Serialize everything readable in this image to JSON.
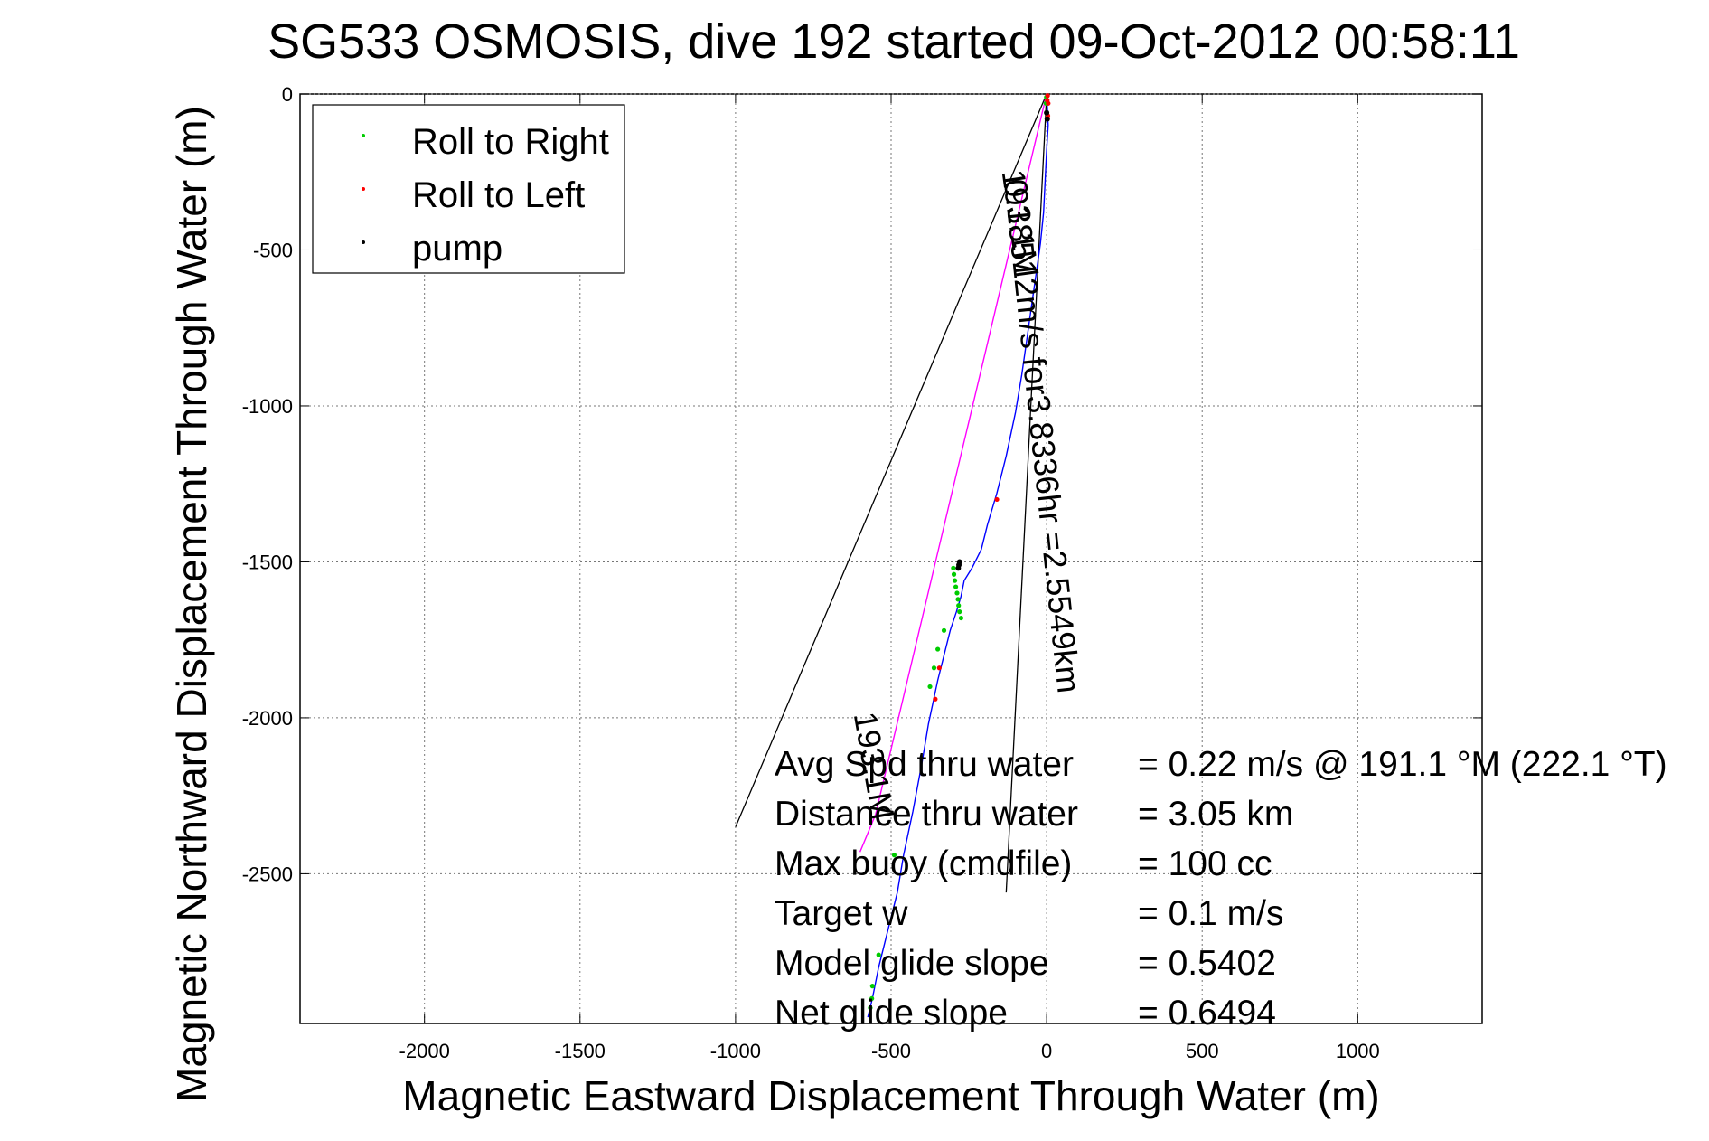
{
  "chart_data": {
    "type": "line",
    "title": "SG533 OSMOSIS, dive 192 started 09-Oct-2012 00:58:11",
    "xlabel": "Magnetic Eastward Displacement Through Water (m)",
    "ylabel": "Magnetic Northward Displacement Through Water (m)",
    "xlim": [
      -2400,
      1400
    ],
    "ylim": [
      -2980,
      0
    ],
    "xticks": [
      -2000,
      -1500,
      -1000,
      -500,
      0,
      500,
      1000
    ],
    "yticks": [
      0,
      -500,
      -1000,
      -1500,
      -2000,
      -2500
    ],
    "xtick_labels": [
      "-2000",
      "-1500",
      "-1000",
      "-500",
      "0",
      "500",
      "1000"
    ],
    "ytick_labels": [
      "0",
      "-500",
      "-1000",
      "-1500",
      "-2000",
      "-2500"
    ],
    "grid": true,
    "legend_position": "top-left",
    "legend": [
      {
        "label": "Roll to Right",
        "color": "#00cc00"
      },
      {
        "label": "Roll to Left",
        "color": "#ff0000"
      },
      {
        "label": "pump",
        "color": "#000000"
      }
    ],
    "series": [
      {
        "color": "#0000ff",
        "x": [
          0,
          2,
          5,
          0,
          -5,
          -10,
          -20,
          -40,
          -60,
          -80,
          -100,
          -130,
          -160,
          -190,
          -210,
          -240,
          -265,
          -275,
          -290,
          -310,
          -330,
          -350,
          -380,
          -400,
          -430,
          -460,
          -480,
          -500,
          -520,
          -540,
          -560,
          -575
        ],
        "y": [
          0,
          -40,
          -100,
          -180,
          -280,
          -380,
          -480,
          -620,
          -760,
          -900,
          -1020,
          -1160,
          -1280,
          -1380,
          -1460,
          -1520,
          -1560,
          -1610,
          -1660,
          -1720,
          -1800,
          -1880,
          -2020,
          -2140,
          -2300,
          -2440,
          -2560,
          -2640,
          -2720,
          -2800,
          -2900,
          -2960
        ]
      },
      {
        "color": "#ff00ff",
        "x": [
          0,
          -50,
          -100,
          -150,
          -200,
          -250,
          -300,
          -350,
          -400,
          -450,
          -500,
          -550,
          -600
        ],
        "y": [
          0,
          -210,
          -420,
          -630,
          -840,
          -1050,
          -1260,
          -1470,
          -1680,
          -1890,
          -2100,
          -2310,
          -2430
        ]
      }
    ],
    "roll_right_points": {
      "x": [
        -2,
        -1,
        -300,
        -298,
        -295,
        -292,
        -288,
        -285,
        -283,
        -280,
        -275,
        -330,
        -350,
        -362,
        -375,
        -490,
        -540,
        -560,
        -562,
        -567
      ],
      "y": [
        -30,
        -10,
        -1520,
        -1540,
        -1560,
        -1580,
        -1600,
        -1620,
        -1640,
        -1660,
        -1680,
        -1720,
        -1780,
        -1840,
        -1900,
        -2440,
        -2760,
        -2860,
        -2900,
        -2930
      ]
    },
    "roll_left_points": {
      "x": [
        3,
        2,
        5,
        4,
        -160,
        -345,
        -358
      ],
      "y": [
        -5,
        -20,
        -30,
        -70,
        -1300,
        -1840,
        -1940
      ]
    },
    "pump_points": {
      "x": [
        0,
        2,
        -280,
        -282,
        -284
      ],
      "y": [
        -60,
        -80,
        -1500,
        -1510,
        -1520
      ]
    },
    "lines": [
      {
        "color": "#000000",
        "x": [
          0,
          -1000
        ],
        "y": [
          0,
          -2350
        ]
      },
      {
        "color": "#000000",
        "x": [
          0,
          -130
        ],
        "y": [
          0,
          -2560
        ]
      }
    ],
    "annotations": [
      {
        "text": "0.18512m/s for3.8336hr =2.5549km",
        "x": -50,
        "y": -1100,
        "angle": -84
      },
      {
        "text": "193.1M",
        "x": -120,
        "y": -420,
        "angle": -82
      },
      {
        "text": "193.1M",
        "x": -590,
        "y": -2160,
        "angle": -80
      }
    ],
    "stats": [
      {
        "label": "Avg Spd thru water",
        "value": "=  0.22 m/s @ 191.1 °M (222.1 °T)"
      },
      {
        "label": "Distance thru water",
        "value": "=  3.05 km"
      },
      {
        "label": "Max buoy (cmdfile)",
        "value": "= 100 cc"
      },
      {
        "label": "Target w",
        "value": "= 0.1 m/s"
      },
      {
        "label": "Model glide slope",
        "value": "= 0.5402"
      },
      {
        "label": "Net glide slope",
        "value": "= 0.6494"
      }
    ]
  }
}
